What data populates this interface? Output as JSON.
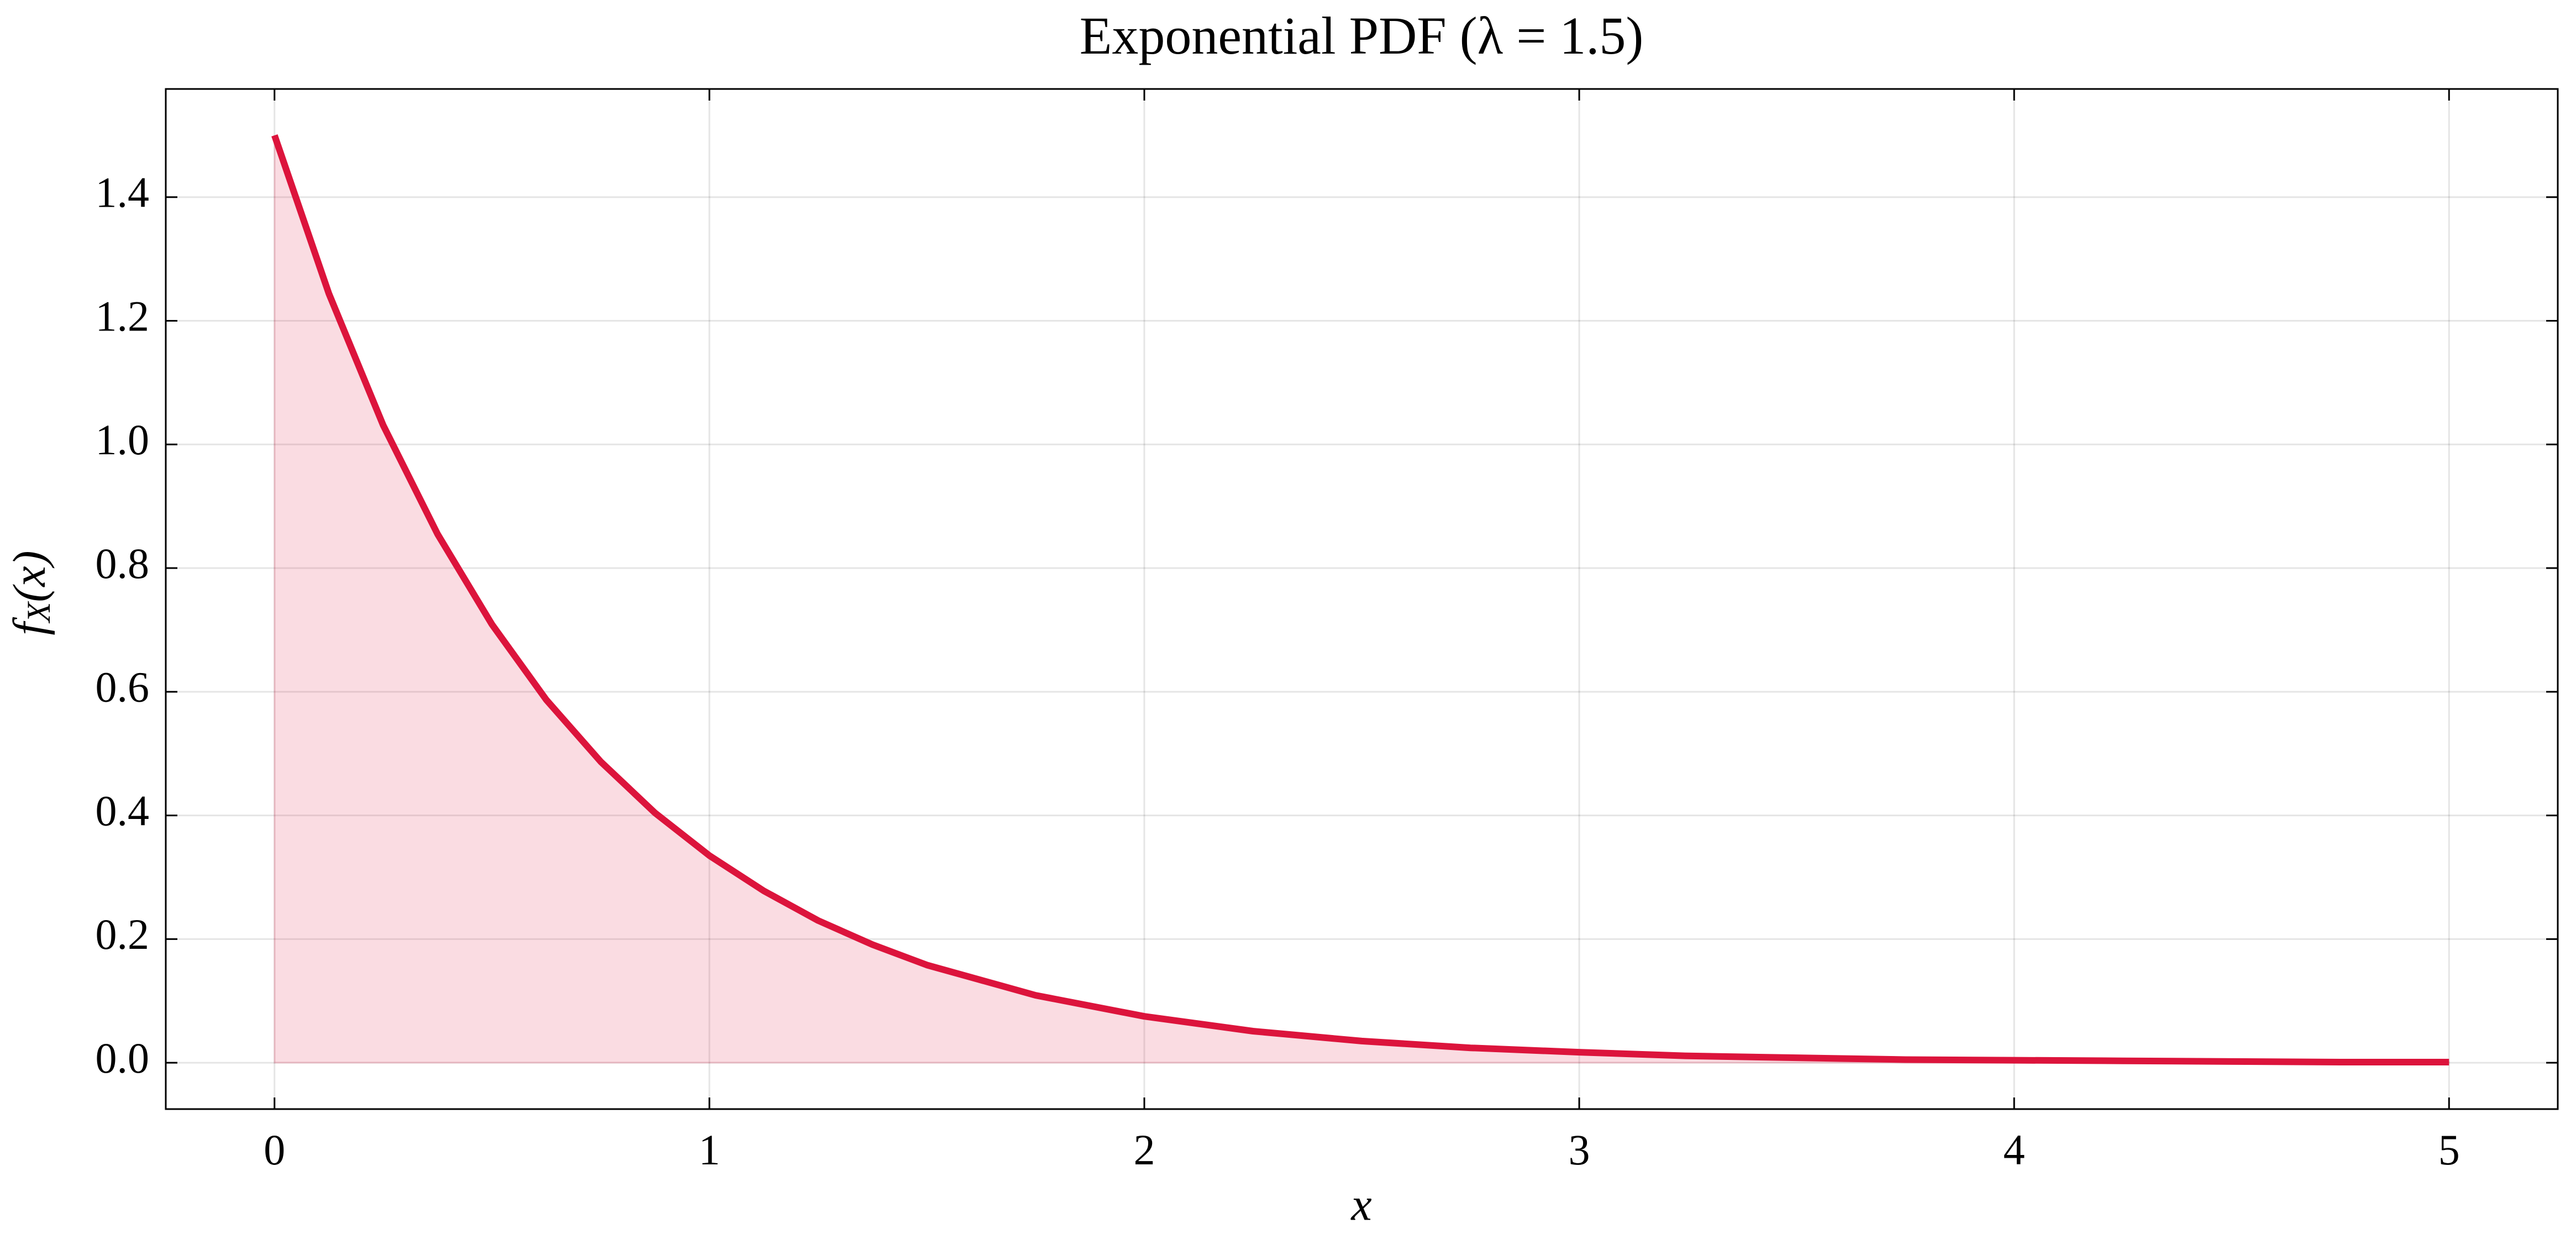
{
  "chart_data": {
    "type": "area_line",
    "title": "Exponential PDF (λ = 1.5)",
    "xlabel": "x",
    "ylabel": "f_X(x)",
    "x": [
      0,
      0.125,
      0.25,
      0.375,
      0.5,
      0.625,
      0.75,
      0.875,
      1,
      1.125,
      1.25,
      1.375,
      1.5,
      1.75,
      2,
      2.25,
      2.5,
      2.75,
      3,
      3.25,
      3.5,
      3.75,
      4,
      4.25,
      4.5,
      4.75,
      5
    ],
    "series": [
      {
        "name": "pdf",
        "color": "#dc143c",
        "values": [
          1.5,
          1.244,
          1.031,
          0.855,
          0.709,
          0.587,
          0.487,
          0.404,
          0.335,
          0.278,
          0.23,
          0.191,
          0.158,
          0.109,
          0.075,
          0.051,
          0.035,
          0.024,
          0.017,
          0.011,
          0.008,
          0.005,
          0.004,
          0.003,
          0.002,
          0.001,
          0.001
        ]
      }
    ],
    "fill_opacity": 0.15,
    "xlim": [
      -0.25,
      5.25
    ],
    "ylim": [
      -0.075,
      1.575
    ],
    "xticks": [
      0,
      1,
      2,
      3,
      4,
      5
    ],
    "yticks": [
      {
        "value": 0,
        "label": "0.0"
      },
      0.2,
      0.4,
      0.6,
      0.8,
      {
        "value": 1,
        "label": "1.0"
      },
      1.2,
      1.4
    ],
    "grid": true
  }
}
